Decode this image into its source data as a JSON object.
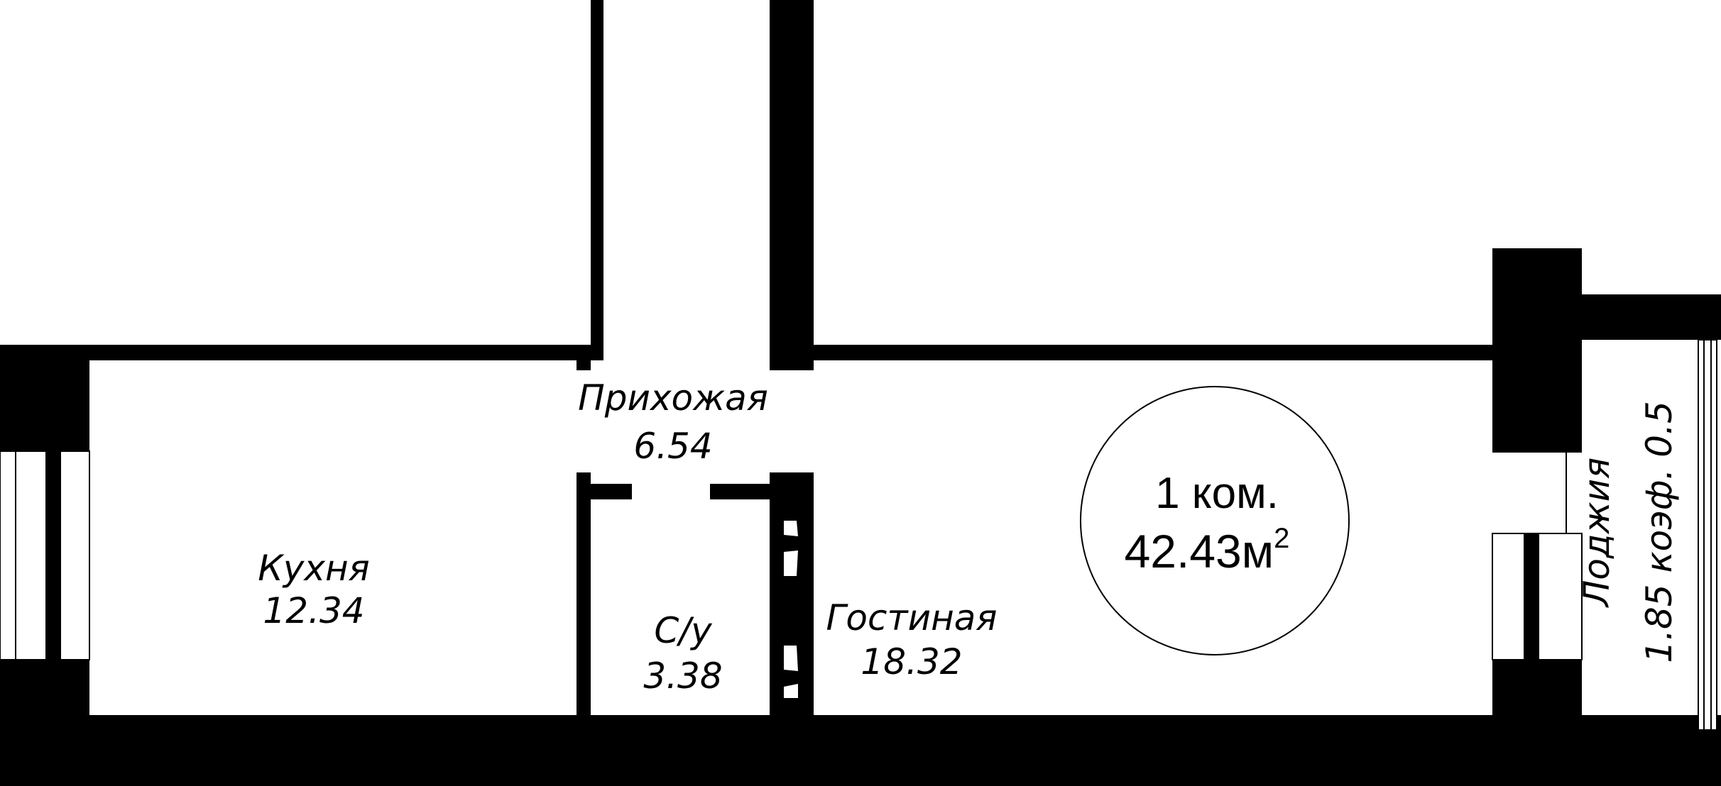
{
  "rooms": {
    "hallway": {
      "name": "Прихожая",
      "area": "6.54"
    },
    "kitchen": {
      "name": "Кухня",
      "area": "12.34"
    },
    "bathroom": {
      "name": "С/у",
      "area": "3.38"
    },
    "living": {
      "name": "Гостиная",
      "area": "18.32"
    },
    "loggia": {
      "name": "Лоджия",
      "details": "1.85 коэф. 0.5"
    }
  },
  "summary": {
    "rooms_label": "1 ком.",
    "total_area": "42.43м",
    "area_unit_exponent": "2"
  }
}
